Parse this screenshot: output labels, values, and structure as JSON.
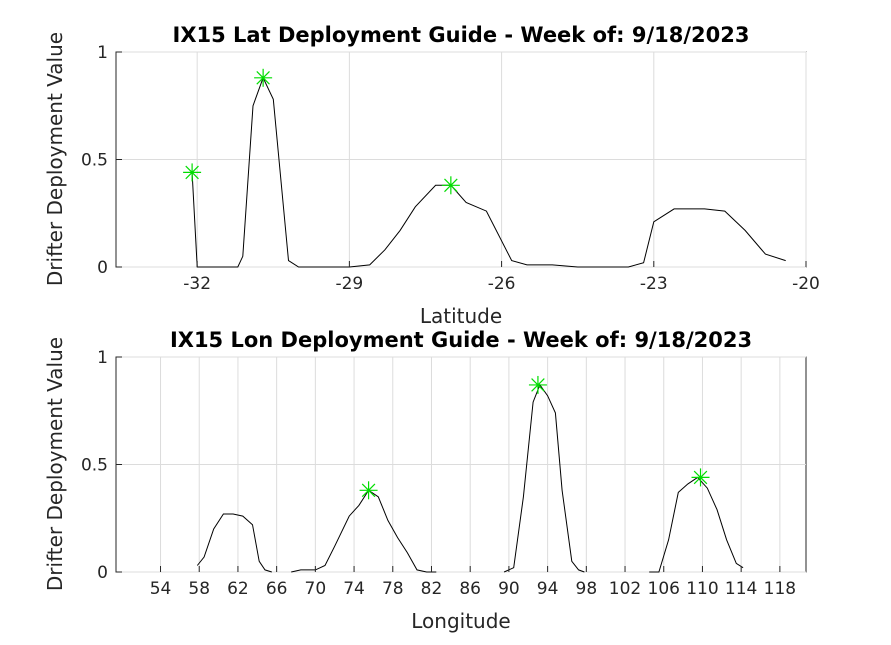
{
  "chart_data": [
    {
      "type": "line",
      "title": "IX15 Lat Deployment Guide - Week of: 9/18/2023",
      "xlabel": "Latitude",
      "ylabel": "Drifter Deployment Value",
      "xlim": [
        -33.6,
        -20
      ],
      "ylim": [
        0,
        1
      ],
      "xticks": [
        -32,
        -29,
        -26,
        -23,
        -20
      ],
      "xtick_labels": [
        "-32",
        "-29",
        "-26",
        "-23",
        "-20"
      ],
      "yticks": [
        0,
        0.5,
        1
      ],
      "ytick_labels": [
        "0",
        "0.5",
        "1"
      ],
      "grid": true,
      "segments": [
        {
          "x": [
            -32.1,
            -32.0,
            -31.95
          ],
          "y": [
            0.44,
            0.0,
            0.0
          ]
        },
        {
          "x": [
            -32.0,
            -31.6,
            -31.2,
            -31.1,
            -30.9,
            -30.7,
            -30.5,
            -30.2,
            -30.0,
            -29.5,
            -29.0,
            -28.6,
            -28.3,
            -28.0,
            -27.7,
            -27.3,
            -27.0,
            -26.7,
            -26.3,
            -25.8,
            -25.5,
            -25.0,
            -24.5,
            -24.0,
            -23.5,
            -23.2,
            -23.0,
            -22.6,
            -22.0,
            -21.6,
            -21.2,
            -20.8,
            -20.4
          ],
          "y": [
            0.0,
            0.0,
            0.0,
            0.05,
            0.75,
            0.88,
            0.78,
            0.03,
            0.0,
            0.0,
            0.0,
            0.01,
            0.08,
            0.17,
            0.28,
            0.38,
            0.38,
            0.3,
            0.26,
            0.03,
            0.01,
            0.01,
            0.0,
            0.0,
            0.0,
            0.02,
            0.21,
            0.27,
            0.27,
            0.26,
            0.17,
            0.06,
            0.03
          ]
        }
      ],
      "markers": {
        "x": [
          -32.1,
          -30.7,
          -27.0
        ],
        "y": [
          0.44,
          0.88,
          0.38
        ],
        "symbol": "asterisk",
        "color": "#00dd00"
      },
      "line_color": "#000000"
    },
    {
      "type": "line",
      "title": "IX15 Lon Deployment Guide - Week of: 9/18/2023",
      "xlabel": "Longitude",
      "ylabel": "Drifter Deployment Value",
      "xlim": [
        49.4,
        120.7
      ],
      "ylim": [
        0,
        1
      ],
      "xticks": [
        54,
        58,
        62,
        66,
        70,
        74,
        78,
        82,
        86,
        90,
        94,
        98,
        102,
        106,
        110,
        114,
        118
      ],
      "xtick_labels": [
        "54",
        "58",
        "62",
        "66",
        "70",
        "74",
        "78",
        "82",
        "86",
        "90",
        "94",
        "98",
        "102",
        "106",
        "110",
        "114",
        "118"
      ],
      "yticks": [
        0,
        0.5,
        1
      ],
      "ytick_labels": [
        "0",
        "0.5",
        "1"
      ],
      "grid": true,
      "segments": [
        {
          "x": [
            57.8,
            58.5,
            59.5,
            60.5,
            61.5,
            62.5,
            63.5,
            64.2,
            64.8,
            65.5
          ],
          "y": [
            0.03,
            0.07,
            0.2,
            0.27,
            0.27,
            0.26,
            0.22,
            0.05,
            0.01,
            0.0
          ]
        },
        {
          "x": [
            67.5,
            68.5,
            70.0,
            71.0,
            72.0,
            73.5,
            74.5,
            75.5,
            76.5,
            77.5,
            78.5,
            79.5,
            80.5,
            81.5,
            82.5
          ],
          "y": [
            0.0,
            0.01,
            0.01,
            0.03,
            0.12,
            0.26,
            0.31,
            0.38,
            0.35,
            0.24,
            0.16,
            0.09,
            0.01,
            0.0,
            0.0
          ]
        },
        {
          "x": [
            89.5,
            90.5,
            91.5,
            92.5,
            93.2,
            94.0,
            94.8,
            95.5,
            96.5,
            97.2,
            97.8
          ],
          "y": [
            0.0,
            0.02,
            0.35,
            0.79,
            0.87,
            0.82,
            0.74,
            0.38,
            0.05,
            0.01,
            0.0
          ]
        },
        {
          "x": [
            104.5,
            105.5,
            106.5,
            107.5,
            108.5,
            109.5,
            110.5,
            111.5,
            112.5,
            113.5,
            114.2
          ],
          "y": [
            0.0,
            0.0,
            0.15,
            0.37,
            0.41,
            0.44,
            0.39,
            0.29,
            0.15,
            0.04,
            0.02
          ]
        }
      ],
      "markers": {
        "x": [
          75.5,
          93.0,
          109.8
        ],
        "y": [
          0.38,
          0.87,
          0.44
        ],
        "symbol": "asterisk",
        "color": "#00dd00"
      },
      "line_color": "#000000"
    }
  ]
}
